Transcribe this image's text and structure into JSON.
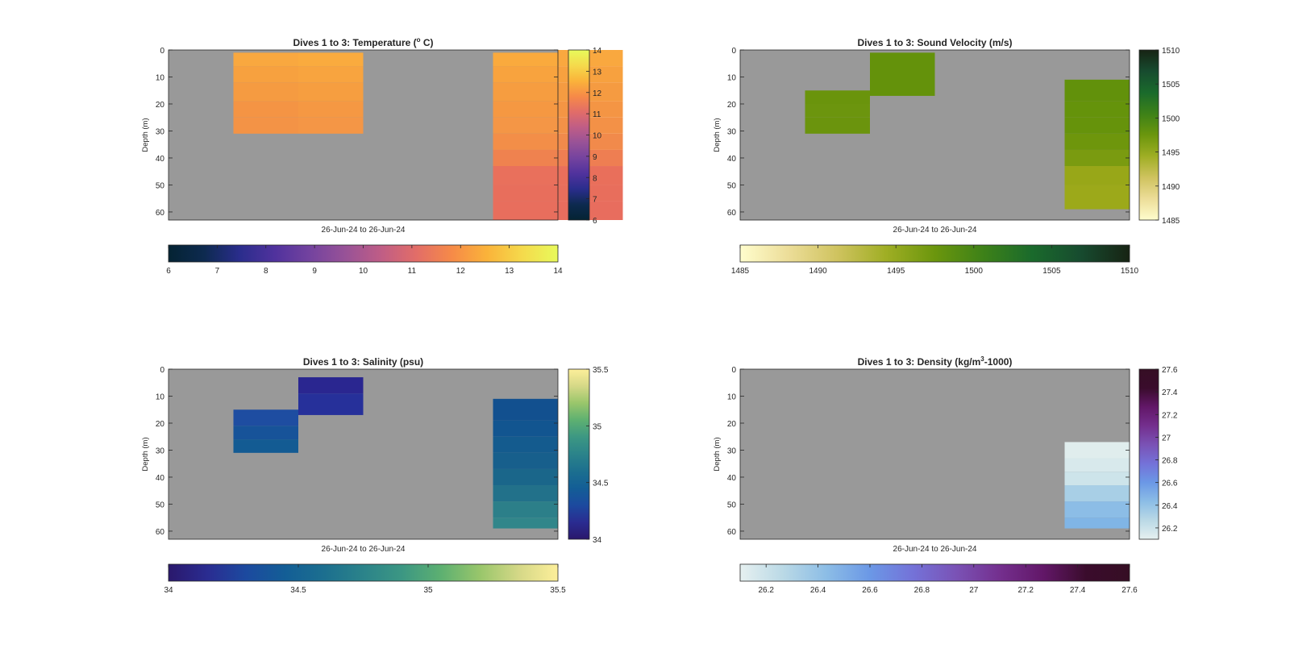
{
  "chart_data": [
    {
      "type": "heatmap",
      "title": "Dives 1 to 3: Temperature (",
      "title_sup": "o",
      "title_end": " C)",
      "xlabel": "26-Jun-24 to 26-Jun-24",
      "ylabel": "Depth (m)",
      "ylim": [
        0,
        63
      ],
      "y_ticks": [
        "0",
        "10",
        "20",
        "30",
        "40",
        "50",
        "60"
      ],
      "background": "#999999",
      "colormap": "thermal",
      "clim": [
        6,
        14
      ],
      "colorbar_ticks": [
        "6",
        "7",
        "8",
        "9",
        "10",
        "11",
        "12",
        "13",
        "14"
      ],
      "horizontal_colorbar_ticks": [
        "6",
        "7",
        "8",
        "9",
        "10",
        "11",
        "12",
        "13",
        "14"
      ],
      "columns": [
        {
          "dive": 1,
          "cells": [
            [
              0,
              1,
              "#999999"
            ],
            [
              1,
              6,
              "#f9a83f"
            ],
            [
              6,
              12,
              "#f7a13f"
            ],
            [
              12,
              19,
              "#f59b41"
            ],
            [
              19,
              25,
              "#f49444"
            ],
            [
              25,
              31,
              "#f39346"
            ]
          ]
        },
        {
          "dive": 2,
          "cells": [
            [
              0,
              1,
              "#999999"
            ],
            [
              1,
              6,
              "#faab3e"
            ],
            [
              6,
              12,
              "#f8a43f"
            ],
            [
              12,
              19,
              "#f69e40"
            ],
            [
              19,
              25,
              "#f59843"
            ],
            [
              25,
              31,
              "#f49646"
            ]
          ]
        },
        {
          "dive": 5,
          "cells": [
            [
              0,
              1,
              "#999999"
            ],
            [
              1,
              6,
              "#faaa3d"
            ],
            [
              6,
              12,
              "#f8a33e"
            ],
            [
              12,
              19,
              "#f69d40"
            ],
            [
              19,
              25,
              "#f59842"
            ],
            [
              25,
              31,
              "#f49646"
            ],
            [
              31,
              37,
              "#f38e48"
            ],
            [
              37,
              43,
              "#ef824f"
            ],
            [
              43,
              50,
              "#e9705c"
            ],
            [
              50,
              56,
              "#e86e5c"
            ],
            [
              56,
              63,
              "#e86e5d"
            ]
          ]
        },
        {
          "dive": 6,
          "cells": [
            [
              0,
              6,
              "#f9a83f"
            ],
            [
              6,
              12,
              "#f7a13f"
            ],
            [
              12,
              19,
              "#f59b41"
            ],
            [
              19,
              25,
              "#f49544"
            ],
            [
              25,
              31,
              "#f39147"
            ],
            [
              31,
              37,
              "#f18a4b"
            ],
            [
              37,
              43,
              "#ee7e52"
            ],
            [
              43,
              50,
              "#e96f5b"
            ],
            [
              50,
              56,
              "#e86e5c"
            ],
            [
              56,
              63,
              "#e86d5e"
            ]
          ]
        }
      ]
    },
    {
      "type": "heatmap",
      "title": "Dives 1 to 3: Sound Velocity (m/s)",
      "xlabel": "26-Jun-24 to 26-Jun-24",
      "ylabel": "Depth (m)",
      "ylim": [
        0,
        63
      ],
      "y_ticks": [
        "0",
        "10",
        "20",
        "30",
        "40",
        "50",
        "60"
      ],
      "background": "#999999",
      "colormap": "speed",
      "clim": [
        1485,
        1510
      ],
      "colorbar_ticks": [
        "1485",
        "1490",
        "1495",
        "1500",
        "1505",
        "1510"
      ],
      "horizontal_colorbar_ticks": [
        "1485",
        "1490",
        "1495",
        "1500",
        "1505",
        "1510"
      ],
      "columns": [
        {
          "dive": 1,
          "cells": [
            [
              15,
              20,
              "#6a940c"
            ],
            [
              20,
              25,
              "#6c950e"
            ],
            [
              25,
              31,
              "#6b940d"
            ]
          ]
        },
        {
          "dive": 2,
          "cells": [
            [
              1,
              17,
              "#64920b"
            ]
          ]
        },
        {
          "dive": 5,
          "cells": [
            [
              11,
              19,
              "#62910b"
            ],
            [
              19,
              25,
              "#65930b"
            ],
            [
              25,
              31,
              "#66930b"
            ],
            [
              31,
              37,
              "#6e960c"
            ],
            [
              37,
              43,
              "#7a9b10"
            ],
            [
              43,
              50,
              "#98a718"
            ],
            [
              50,
              59,
              "#9ca91a"
            ]
          ]
        }
      ]
    },
    {
      "type": "heatmap",
      "title": "Dives 1 to 3: Salinity (psu)",
      "xlabel": "26-Jun-24 to 26-Jun-24",
      "ylabel": "Depth (m)",
      "ylim": [
        0,
        63
      ],
      "y_ticks": [
        "0",
        "10",
        "20",
        "30",
        "40",
        "50",
        "60"
      ],
      "background": "#999999",
      "colormap": "haline",
      "clim": [
        34,
        35.5
      ],
      "colorbar_ticks": [
        "34",
        "34.5",
        "35",
        "35.5"
      ],
      "horizontal_colorbar_ticks": [
        "34",
        "34.5",
        "35",
        "35.5"
      ],
      "columns": [
        {
          "dive": 1,
          "cells": [
            [
              15,
              21,
              "#1e4da1"
            ],
            [
              21,
              26,
              "#175399"
            ],
            [
              26,
              31,
              "#135b93"
            ]
          ]
        },
        {
          "dive": 2,
          "cells": [
            [
              3,
              9,
              "#2a2690"
            ],
            [
              9,
              17,
              "#26309a"
            ]
          ]
        },
        {
          "dive": 5,
          "cells": [
            [
              11,
              19,
              "#12508f"
            ],
            [
              19,
              25,
              "#125590"
            ],
            [
              25,
              31,
              "#145b8e"
            ],
            [
              31,
              37,
              "#175f8c"
            ],
            [
              37,
              43,
              "#1a668a"
            ],
            [
              43,
              49,
              "#22718a"
            ],
            [
              49,
              55,
              "#2c7f89"
            ],
            [
              55,
              59,
              "#31868a"
            ]
          ]
        }
      ]
    },
    {
      "type": "heatmap",
      "title": "Dives 1 to 3: Density (kg/m",
      "title_sup": "3",
      "title_end": "-1000)",
      "xlabel": "26-Jun-24 to 26-Jun-24",
      "ylabel": "Depth (m)",
      "ylim": [
        0,
        63
      ],
      "y_ticks": [
        "0",
        "10",
        "20",
        "30",
        "40",
        "50",
        "60"
      ],
      "background": "#999999",
      "colormap": "dense",
      "clim": [
        26.1,
        27.6
      ],
      "colorbar_ticks": [
        "26.2",
        "26.4",
        "26.6",
        "26.8",
        "27",
        "27.2",
        "27.4",
        "27.6"
      ],
      "horizontal_colorbar_ticks": [
        "26.2",
        "26.4",
        "26.6",
        "26.8",
        "27",
        "27.2",
        "27.4",
        "27.6"
      ],
      "columns": [
        {
          "dive": 5,
          "cells": [
            [
              27,
              33,
              "#e0eded"
            ],
            [
              33,
              38,
              "#d8e9ec"
            ],
            [
              38,
              43,
              "#cde4ea"
            ],
            [
              43,
              49,
              "#a8cfe6"
            ],
            [
              49,
              55,
              "#8cbde6"
            ],
            [
              55,
              59,
              "#80b5e6"
            ]
          ]
        }
      ]
    }
  ]
}
